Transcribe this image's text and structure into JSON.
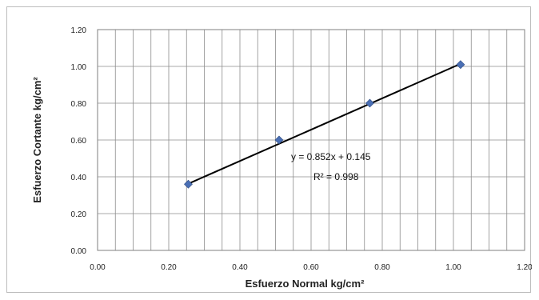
{
  "chart_data": {
    "type": "scatter",
    "title": "",
    "xlabel": "Esfuerzo Normal kg/cm²",
    "ylabel": "Esfuerzo Cortante kg/cm²",
    "xlim": [
      0,
      1.2
    ],
    "ylim": [
      0,
      1.2
    ],
    "x_ticks": [
      "0.00",
      "0.20",
      "0.40",
      "0.60",
      "0.80",
      "1.00",
      "1.20"
    ],
    "y_ticks": [
      "0.00",
      "0.20",
      "0.40",
      "0.60",
      "0.80",
      "1.00",
      "1.20"
    ],
    "grid": true,
    "series": [
      {
        "x": [
          0.255,
          0.51,
          0.765,
          1.02
        ],
        "y": [
          0.36,
          0.6,
          0.8,
          1.01
        ],
        "color": "#4a6fb5"
      }
    ],
    "trendline": {
      "slope": 0.852,
      "intercept": 0.145,
      "color": "#000000"
    },
    "annotations": {
      "equation": "y = 0.852x + 0.145",
      "r2": "R² = 0.998"
    }
  }
}
